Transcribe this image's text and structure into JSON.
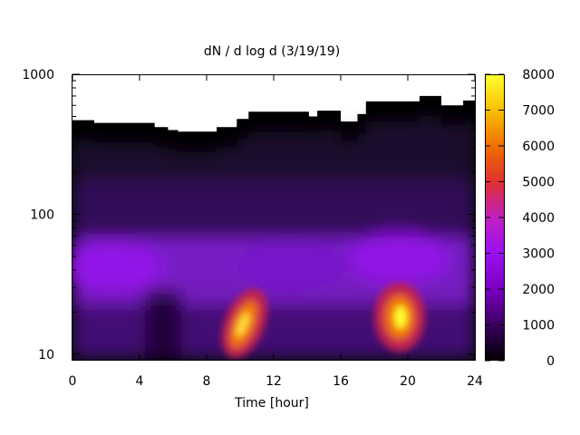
{
  "chart_data": {
    "type": "heatmap",
    "title": "dN / d log d (3/19/19)",
    "xlabel": "Time [hour]",
    "ylabel": "",
    "x_ticks": [
      0,
      4,
      8,
      12,
      16,
      20,
      24
    ],
    "y_ticks": [
      10,
      100,
      1000
    ],
    "y_scale": "log",
    "xlim": [
      0,
      24
    ],
    "ylim": [
      9,
      1000
    ],
    "colorbar": {
      "ticks": [
        0,
        1000,
        2000,
        3000,
        4000,
        5000,
        6000,
        7000,
        8000
      ],
      "range": [
        0,
        8000
      ],
      "palette": [
        "#000000",
        "#3a0060",
        "#7a00c0",
        "#9a10f0",
        "#c020c0",
        "#e03030",
        "#f07000",
        "#f8c000",
        "#ffff30"
      ]
    },
    "upper_edge": {
      "x": [
        0,
        1.3,
        2.5,
        3.7,
        4.9,
        5.7,
        6.3,
        8.0,
        8.6,
        9.8,
        10.5,
        12.9,
        14.1,
        14.6,
        16.0,
        17.0,
        17.5,
        20.0,
        20.7,
        22.0,
        23.3,
        24.0
      ],
      "y": [
        470,
        450,
        450,
        450,
        420,
        400,
        390,
        390,
        420,
        480,
        540,
        540,
        500,
        550,
        460,
        520,
        640,
        640,
        700,
        600,
        650,
        600
      ]
    },
    "features": [
      {
        "label": "",
        "x": 10.2,
        "y": 16,
        "peak": 8000
      },
      {
        "label": "",
        "x": 19.5,
        "y": 18,
        "peak": 8000
      },
      {
        "label": "",
        "x": 2.5,
        "y": 40,
        "peak": 2200
      },
      {
        "label": "",
        "x": 20.0,
        "y": 35,
        "peak": 2500
      }
    ]
  }
}
